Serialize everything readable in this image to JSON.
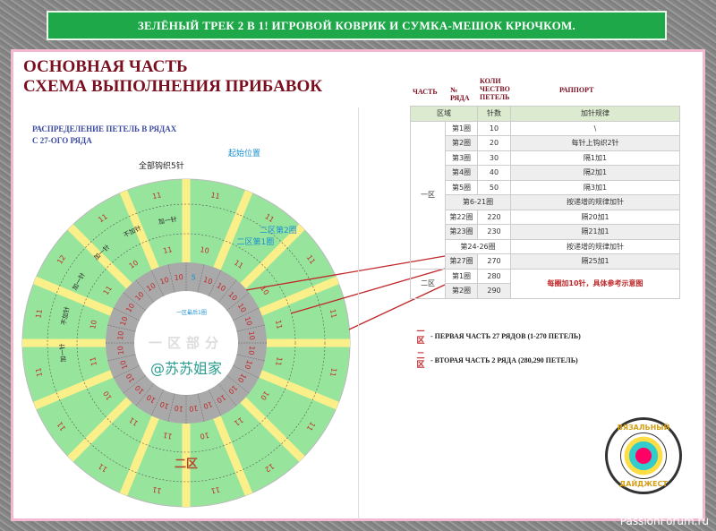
{
  "banner": "ЗЕЛЁНЫЙ ТРЕК 2 В 1! ИГРОВОЙ КОВРИК И СУМКА-МЕШОК КРЮЧКОМ.",
  "title": [
    "ОСНОВНАЯ ЧАСТЬ",
    "СХЕМА ВЫПОЛНЕНИЯ ПРИБАВОК"
  ],
  "subtitle": [
    "РАСПРЕДЕЛЕНИЕ ПЕТЕЛЬ В РЯДАХ",
    "С 27-ОГО РЯДА"
  ],
  "diagram": {
    "note_all5": "全部钩织5针",
    "note_start": "起始位置",
    "zone2_row2": "二区第2圈",
    "zone2_row1": "二区第1圈",
    "zone1_last": "一区最后1圈",
    "center_label": "一区部分",
    "center_watermark": "@苏苏姐家",
    "zone2_label": "二区",
    "inner_ring_labels": [
      "5",
      "10",
      "10",
      "10",
      "10",
      "10",
      "10",
      "10",
      "10",
      "10",
      "10",
      "10",
      "10",
      "10",
      "10",
      "10",
      "10",
      "10",
      "10",
      "10",
      "10",
      "10",
      "10",
      "10",
      "10",
      "10",
      "10",
      "10"
    ],
    "mid_ring_labels": [
      "10",
      "11",
      "10",
      "11",
      "11",
      "10",
      "11",
      "10",
      "11",
      "11",
      "10",
      "11",
      "10",
      "11",
      "10",
      "11"
    ],
    "outer_ring_labels": [
      "11",
      "11",
      "11",
      "11",
      "11",
      "11",
      "12",
      "11",
      "11",
      "11",
      "11",
      "11",
      "11",
      "12",
      "11",
      "11"
    ],
    "notes_black": [
      "加一针",
      "不加针",
      "加一针",
      "加一针",
      "不加针",
      "加一针"
    ],
    "colors": {
      "green": "#97e59c",
      "yellow": "#fbef8a",
      "gray": "#a9a9a9",
      "red": "#c0282a",
      "blue": "#1a8fd0"
    }
  },
  "table_headers": {
    "part": "ЧАСТЬ",
    "row": "№ РЯДА",
    "count": "КОЛИ ЧЕСТВО ПЕТЕЛЬ",
    "rapport": "РАППОРТ"
  },
  "table": {
    "header": [
      "区域",
      "针数",
      "加针规律"
    ],
    "zone1": "一区",
    "zone2": "二区",
    "rows": [
      [
        "第1圈",
        "10",
        "\\"
      ],
      [
        "第2圈",
        "20",
        "每针上钩织2针"
      ],
      [
        "第3圈",
        "30",
        "隔1加1"
      ],
      [
        "第4圈",
        "40",
        "隔2加1"
      ],
      [
        "第5圈",
        "50",
        "隔3加1"
      ],
      [
        "第6-21圈",
        "",
        "按递增的规律加针"
      ],
      [
        "第22圈",
        "220",
        "隔20加1"
      ],
      [
        "第23圈",
        "230",
        "隔21加1"
      ],
      [
        "第24-26圈",
        "",
        "按递增的规律加针"
      ],
      [
        "第27圈",
        "270",
        "隔25加1"
      ]
    ],
    "zone2_rows": [
      [
        "第1圈",
        "280"
      ],
      [
        "第2圈",
        "290"
      ]
    ],
    "zone2_note": "每圈加10针，具体参考示意图"
  },
  "legend": [
    {
      "key": "一区",
      "text": "- ПЕРВАЯ ЧАСТЬ 27 РЯДОВ (1-270 ПЕТЕЛЬ)"
    },
    {
      "key": "二区",
      "text": "- ВТОРАЯ ЧАСТЬ 2 РЯДА (280,290 ПЕТЕЛЬ)"
    }
  ],
  "logo": {
    "top": "ВЯЗАЛЬНЫЙ",
    "bottom": "ДАЙДЖЕСТ"
  },
  "watermark": "PassionForum.ru"
}
